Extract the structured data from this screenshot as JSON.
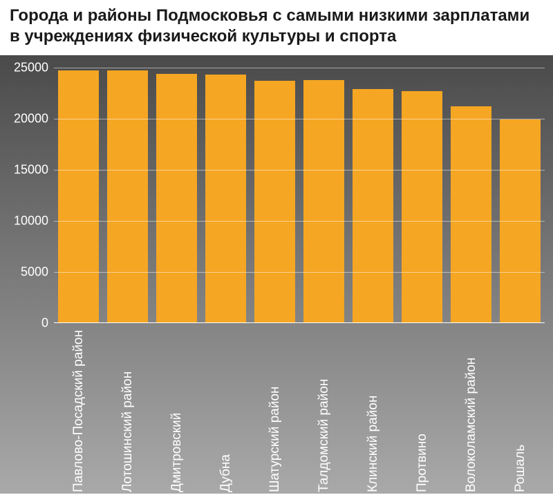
{
  "title": "Города и районы Подмосковья с самыми низкими зарплатами в учреждениях физической культуры и спорта",
  "chart": {
    "type": "bar",
    "background_gradient": [
      "#4a4a4a",
      "#7a7a7a",
      "#a9a9a9"
    ],
    "bar_color": "#f5a623",
    "grid_color": "rgba(255,255,255,0.5)",
    "text_color": "#ffffff",
    "ylim": [
      0,
      25000
    ],
    "ytick_step": 5000,
    "yticks": [
      0,
      5000,
      10000,
      15000,
      20000,
      25000
    ],
    "categories": [
      "Павлово-Посадский район",
      "Лотошинский район",
      "Дмитровский",
      "Дубна",
      "Шатурский район",
      "Талдомский район",
      "Клинский район",
      "Протвино",
      "Волоколамский район",
      "Рошаль"
    ],
    "values": [
      24700,
      24700,
      24400,
      24300,
      23700,
      23800,
      22900,
      22700,
      21200,
      19900
    ],
    "bar_width_ratio": 0.82,
    "label_fontsize": 19,
    "ylabel_fontsize": 18,
    "title_fontsize": 24,
    "title_fontweight": 700
  }
}
